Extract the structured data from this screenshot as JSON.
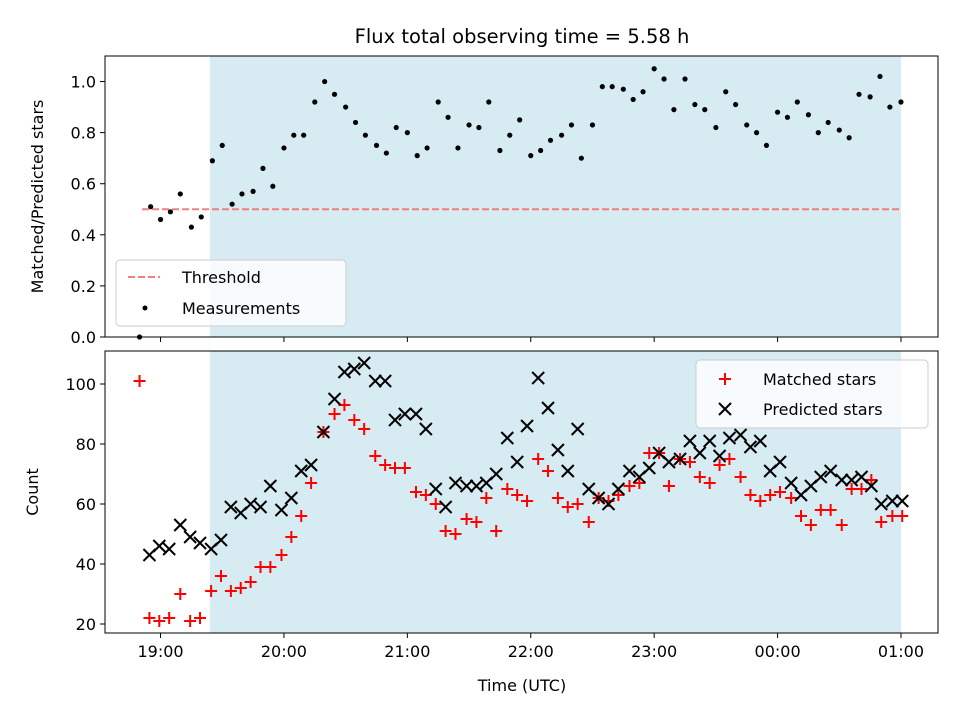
{
  "figure": {
    "title": "Flux total observing time = 5.58 h",
    "xlabel": "Time (UTC)",
    "colors": {
      "shade": "#add8e6",
      "threshold": "#f08080",
      "measurements": "#000000",
      "matched": "#ff0000",
      "predicted": "#000000"
    }
  },
  "chart_data": [
    {
      "type": "scatter",
      "ylabel": "Matched/Predicted stars",
      "ylim": [
        0,
        1.1
      ],
      "yticks": [
        0.0,
        0.2,
        0.4,
        0.6,
        0.8,
        1.0
      ],
      "ytick_labels": [
        "0.0",
        "0.2",
        "0.4",
        "0.6",
        "0.8",
        "1.0"
      ],
      "x_axis": "time (hours after 18:00 UTC, 24.0 = 00:00)",
      "xlim": [
        18.55,
        25.3
      ],
      "xticks": [
        19,
        20,
        21,
        22,
        23,
        24,
        25
      ],
      "xtick_labels": [],
      "shaded_region": {
        "x": [
          19.4,
          25.0
        ],
        "color": "#add8e6"
      },
      "threshold": {
        "name": "Threshold",
        "value": 0.5,
        "x": [
          18.85,
          25.0
        ],
        "style": "dashed",
        "color": "#f08080"
      },
      "legend": {
        "position": "lower left",
        "entries": [
          "Threshold",
          "Measurements"
        ]
      },
      "series": [
        {
          "name": "Measurements",
          "marker": "dot",
          "color": "#000000",
          "x": [
            18.83,
            18.92,
            19.0,
            19.08,
            19.16,
            19.25,
            19.33,
            19.42,
            19.5,
            19.58,
            19.66,
            19.75,
            19.83,
            19.91,
            20.0,
            20.08,
            20.16,
            20.25,
            20.33,
            20.41,
            20.5,
            20.58,
            20.66,
            20.75,
            20.83,
            20.91,
            21.0,
            21.08,
            21.16,
            21.25,
            21.33,
            21.41,
            21.5,
            21.58,
            21.66,
            21.75,
            21.83,
            21.91,
            22.0,
            22.08,
            22.16,
            22.25,
            22.33,
            22.41,
            22.5,
            22.58,
            22.66,
            22.75,
            22.83,
            22.91,
            23.0,
            23.08,
            23.16,
            23.25,
            23.33,
            23.41,
            23.5,
            23.58,
            23.66,
            23.75,
            23.83,
            23.91,
            24.0,
            24.08,
            24.16,
            24.25,
            24.33,
            24.41,
            24.5,
            24.58,
            24.66,
            24.75,
            24.83,
            24.91,
            25.0
          ],
          "y": [
            0.0,
            0.51,
            0.46,
            0.49,
            0.56,
            0.43,
            0.47,
            0.69,
            0.75,
            0.52,
            0.56,
            0.57,
            0.66,
            0.59,
            0.74,
            0.79,
            0.79,
            0.92,
            1.0,
            0.95,
            0.9,
            0.84,
            0.79,
            0.75,
            0.72,
            0.82,
            0.8,
            0.71,
            0.74,
            0.92,
            0.86,
            0.74,
            0.83,
            0.82,
            0.92,
            0.73,
            0.79,
            0.85,
            0.71,
            0.73,
            0.77,
            0.79,
            0.83,
            0.7,
            0.83,
            0.98,
            0.98,
            0.97,
            0.93,
            0.96,
            1.05,
            1.01,
            0.89,
            1.01,
            0.91,
            0.89,
            0.82,
            0.96,
            0.91,
            0.83,
            0.8,
            0.75,
            0.88,
            0.86,
            0.92,
            0.87,
            0.8,
            0.84,
            0.81,
            0.78,
            0.95,
            0.94,
            1.02,
            0.9,
            0.92
          ]
        }
      ]
    },
    {
      "type": "scatter",
      "ylabel": "Count",
      "ylim": [
        17,
        111
      ],
      "yticks": [
        20,
        40,
        60,
        80,
        100
      ],
      "ytick_labels": [
        "20",
        "40",
        "60",
        "80",
        "100"
      ],
      "x_axis": "time (hours after 18:00 UTC, 24.0 = 00:00)",
      "xlim": [
        18.55,
        25.3
      ],
      "xticks": [
        19,
        20,
        21,
        22,
        23,
        24,
        25
      ],
      "xtick_labels": [
        "19:00",
        "20:00",
        "21:00",
        "22:00",
        "23:00",
        "00:00",
        "01:00"
      ],
      "shaded_region": {
        "x": [
          19.4,
          25.0
        ],
        "color": "#add8e6"
      },
      "legend": {
        "position": "upper right",
        "entries": [
          "Matched stars",
          "Predicted stars"
        ]
      },
      "series": [
        {
          "name": "Matched stars",
          "marker": "plus",
          "color": "#ff0000",
          "x": [
            18.83,
            18.91,
            18.99,
            19.07,
            19.16,
            19.24,
            19.32,
            19.41,
            19.49,
            19.57,
            19.65,
            19.73,
            19.81,
            19.89,
            19.98,
            20.06,
            20.14,
            20.22,
            20.32,
            20.41,
            20.49,
            20.57,
            20.65,
            20.74,
            20.82,
            20.9,
            20.98,
            21.07,
            21.15,
            21.23,
            21.31,
            21.39,
            21.48,
            21.56,
            21.64,
            21.72,
            21.81,
            21.89,
            21.97,
            22.06,
            22.14,
            22.22,
            22.3,
            22.38,
            22.47,
            22.55,
            22.63,
            22.71,
            22.8,
            22.88,
            22.96,
            23.04,
            23.12,
            23.21,
            23.29,
            23.37,
            23.45,
            23.53,
            23.61,
            23.7,
            23.78,
            23.86,
            23.94,
            24.02,
            24.11,
            24.19,
            24.27,
            24.35,
            24.43,
            24.52,
            24.6,
            24.68,
            24.76,
            24.84,
            24.93,
            25.01
          ],
          "y": [
            101,
            22,
            21,
            22,
            30,
            21,
            22,
            31,
            36,
            31,
            32,
            34,
            39,
            39,
            43,
            49,
            56,
            67,
            84,
            90,
            93,
            88,
            85,
            76,
            73,
            72,
            72,
            64,
            63,
            60,
            51,
            50,
            55,
            54,
            62,
            51,
            65,
            63,
            61,
            75,
            71,
            62,
            59,
            60,
            54,
            62,
            61,
            63,
            66,
            67,
            77,
            77,
            66,
            75,
            74,
            69,
            67,
            73,
            75,
            69,
            63,
            61,
            63,
            64,
            62,
            56,
            53,
            58,
            58,
            53,
            65,
            65,
            68,
            54,
            56,
            56
          ],
          "y_note": ""
        },
        {
          "name": "Predicted stars",
          "marker": "x",
          "color": "#000000",
          "x": [
            18.91,
            18.99,
            19.07,
            19.16,
            19.24,
            19.32,
            19.41,
            19.49,
            19.57,
            19.65,
            19.73,
            19.81,
            19.89,
            19.98,
            20.06,
            20.14,
            20.22,
            20.32,
            20.41,
            20.49,
            20.57,
            20.65,
            20.74,
            20.82,
            20.9,
            20.98,
            21.07,
            21.15,
            21.23,
            21.31,
            21.39,
            21.48,
            21.56,
            21.64,
            21.72,
            21.81,
            21.89,
            21.97,
            22.06,
            22.14,
            22.22,
            22.3,
            22.38,
            22.47,
            22.55,
            22.63,
            22.71,
            22.8,
            22.88,
            22.96,
            23.04,
            23.12,
            23.21,
            23.29,
            23.37,
            23.45,
            23.53,
            23.61,
            23.7,
            23.78,
            23.86,
            23.94,
            24.02,
            24.11,
            24.19,
            24.27,
            24.35,
            24.43,
            24.52,
            24.6,
            24.68,
            24.76,
            24.84,
            24.93,
            25.01
          ],
          "y": [
            43,
            46,
            45,
            53,
            49,
            47,
            45,
            48,
            59,
            57,
            60,
            59,
            66,
            58,
            62,
            71,
            73,
            84,
            95,
            104,
            105,
            107,
            101,
            101,
            88,
            90,
            90,
            85,
            65,
            59,
            67,
            66,
            66,
            67,
            70,
            82,
            74,
            86,
            102,
            92,
            78,
            71,
            85,
            65,
            62,
            60,
            65,
            71,
            69,
            72,
            77,
            74,
            75,
            81,
            77,
            81,
            76,
            82,
            83,
            79,
            81,
            71,
            74,
            67,
            63,
            66,
            69,
            71,
            68,
            68,
            69,
            66,
            60,
            61,
            61
          ]
        }
      ]
    }
  ]
}
